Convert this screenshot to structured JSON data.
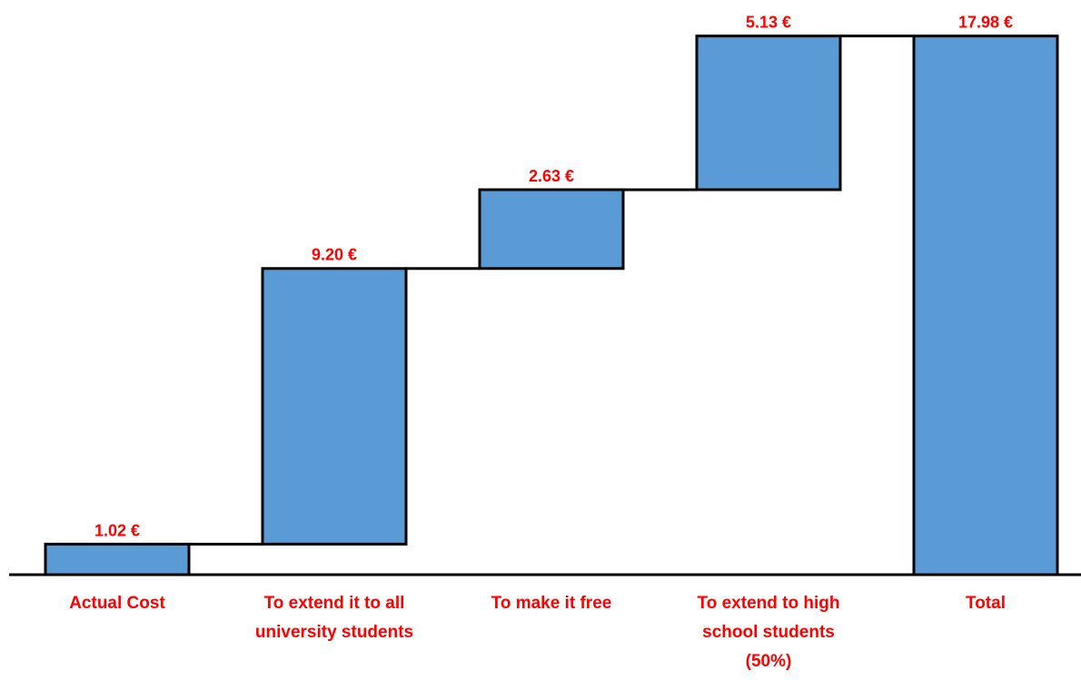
{
  "chart_data": {
    "type": "waterfall",
    "categories": [
      "Actual Cost",
      "To extend it to all university students",
      "To make it free",
      "To extend to high school students (50%)",
      "Total"
    ],
    "category_label_lines": [
      [
        "Actual Cost"
      ],
      [
        "To extend it to all",
        "university students"
      ],
      [
        "To make it free"
      ],
      [
        "To extend to high",
        "school students",
        "(50%)"
      ],
      [
        "Total"
      ]
    ],
    "values": [
      1.02,
      9.2,
      2.63,
      5.13,
      17.98
    ],
    "value_labels": [
      "1.02 €",
      "9.20 €",
      "2.63 €",
      "5.13 €",
      "17.98 €"
    ],
    "is_total": [
      false,
      false,
      false,
      false,
      true
    ],
    "colors": {
      "bar_fill": "#5b9bd5",
      "bar_stroke": "#000000",
      "label_text": "#ff0000",
      "axis": "#000000"
    }
  }
}
